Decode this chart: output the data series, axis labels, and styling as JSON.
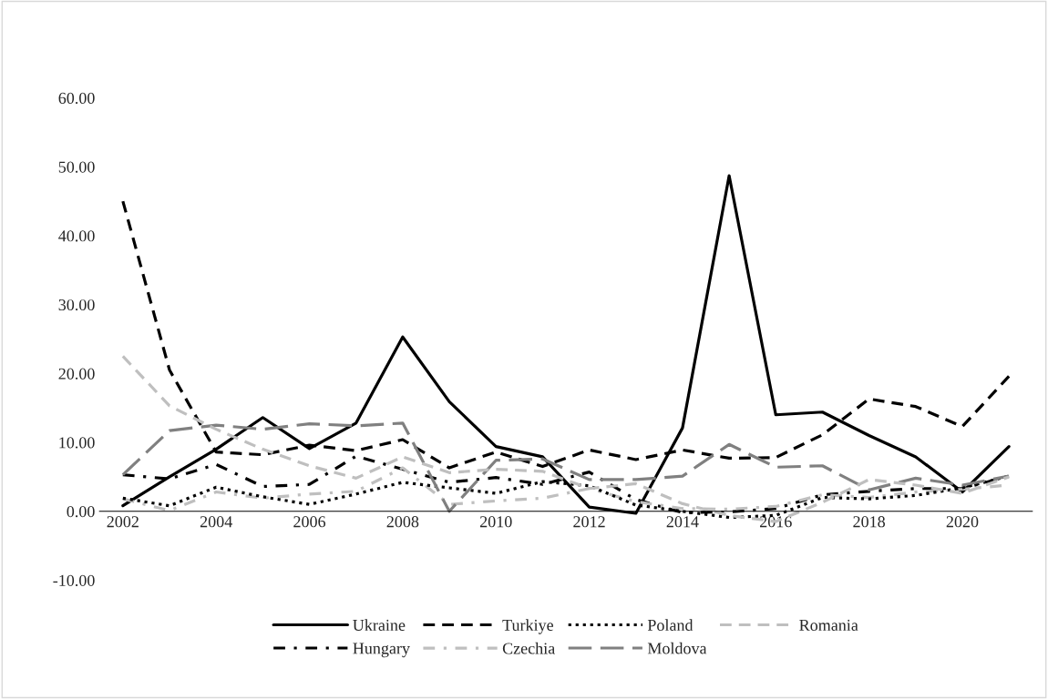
{
  "chart_data": {
    "type": "line",
    "x": [
      2002,
      2003,
      2004,
      2005,
      2006,
      2007,
      2008,
      2009,
      2010,
      2011,
      2012,
      2013,
      2014,
      2015,
      2016,
      2017,
      2018,
      2019,
      2020,
      2021
    ],
    "xlim": [
      2001.5,
      2021.5
    ],
    "xticks": [
      2002,
      2004,
      2006,
      2008,
      2010,
      2012,
      2014,
      2016,
      2018,
      2020
    ],
    "ylim": [
      -10,
      60
    ],
    "yticks": [
      {
        "value": -10,
        "label": "-10.00"
      },
      {
        "value": 0,
        "label": "0.00"
      },
      {
        "value": 10,
        "label": "10.00"
      },
      {
        "value": 20,
        "label": "20.00"
      },
      {
        "value": 30,
        "label": "30.00"
      },
      {
        "value": 40,
        "label": "40.00"
      },
      {
        "value": 50,
        "label": "50.00"
      },
      {
        "value": 60,
        "label": "60.00"
      }
    ],
    "grid": false,
    "legend": "bottom",
    "series": [
      {
        "name": "Ukraine",
        "color": "#000000",
        "line_style": "solid",
        "values": [
          0.8,
          5.0,
          9.0,
          13.6,
          9.1,
          12.8,
          25.3,
          15.9,
          9.4,
          7.9,
          0.6,
          -0.3,
          12.1,
          48.7,
          14.0,
          14.4,
          11.0,
          7.9,
          2.8,
          9.4
        ]
      },
      {
        "name": "Hungary",
        "color": "#000000",
        "line_style": "dashdot",
        "values": [
          5.3,
          4.7,
          6.8,
          3.6,
          3.9,
          8.0,
          6.1,
          4.2,
          4.9,
          3.9,
          5.7,
          1.7,
          -0.2,
          -0.1,
          0.4,
          2.4,
          2.9,
          3.3,
          3.3,
          5.1
        ]
      },
      {
        "name": "Turkiye",
        "color": "#000000",
        "line_style": "dashed",
        "values": [
          45.0,
          20.5,
          8.6,
          8.2,
          9.6,
          8.8,
          10.4,
          6.3,
          8.6,
          6.5,
          8.9,
          7.5,
          8.9,
          7.7,
          7.8,
          11.1,
          16.3,
          15.2,
          12.3,
          19.6
        ]
      },
      {
        "name": "Czechia",
        "color": "#bfbfbf",
        "line_style": "dashdot",
        "values": [
          1.8,
          0.1,
          2.8,
          1.9,
          2.5,
          2.9,
          6.3,
          1.0,
          1.5,
          1.9,
          3.3,
          1.4,
          0.4,
          0.3,
          0.7,
          2.4,
          2.0,
          2.8,
          3.2,
          3.8
        ]
      },
      {
        "name": "Poland",
        "color": "#000000",
        "line_style": "dotted",
        "values": [
          1.9,
          0.8,
          3.5,
          2.1,
          1.0,
          2.5,
          4.2,
          3.4,
          2.6,
          4.3,
          3.7,
          0.9,
          0.0,
          -0.9,
          -0.6,
          2.0,
          1.8,
          2.3,
          3.4,
          5.1
        ]
      },
      {
        "name": "Moldova",
        "color": "#808080",
        "line_style": "longdash",
        "values": [
          5.3,
          11.7,
          12.5,
          11.9,
          12.7,
          12.4,
          12.8,
          0.0,
          7.4,
          7.6,
          4.6,
          4.6,
          5.1,
          9.7,
          6.4,
          6.6,
          3.1,
          4.8,
          3.8,
          5.1
        ]
      },
      {
        "name": "Romania",
        "color": "#bfbfbf",
        "line_style": "dashed",
        "values": [
          22.5,
          15.3,
          11.9,
          9.0,
          6.6,
          4.8,
          7.9,
          5.6,
          6.1,
          5.8,
          3.3,
          4.0,
          1.1,
          -0.6,
          -1.5,
          1.3,
          4.6,
          3.8,
          2.6,
          5.0
        ]
      }
    ]
  }
}
